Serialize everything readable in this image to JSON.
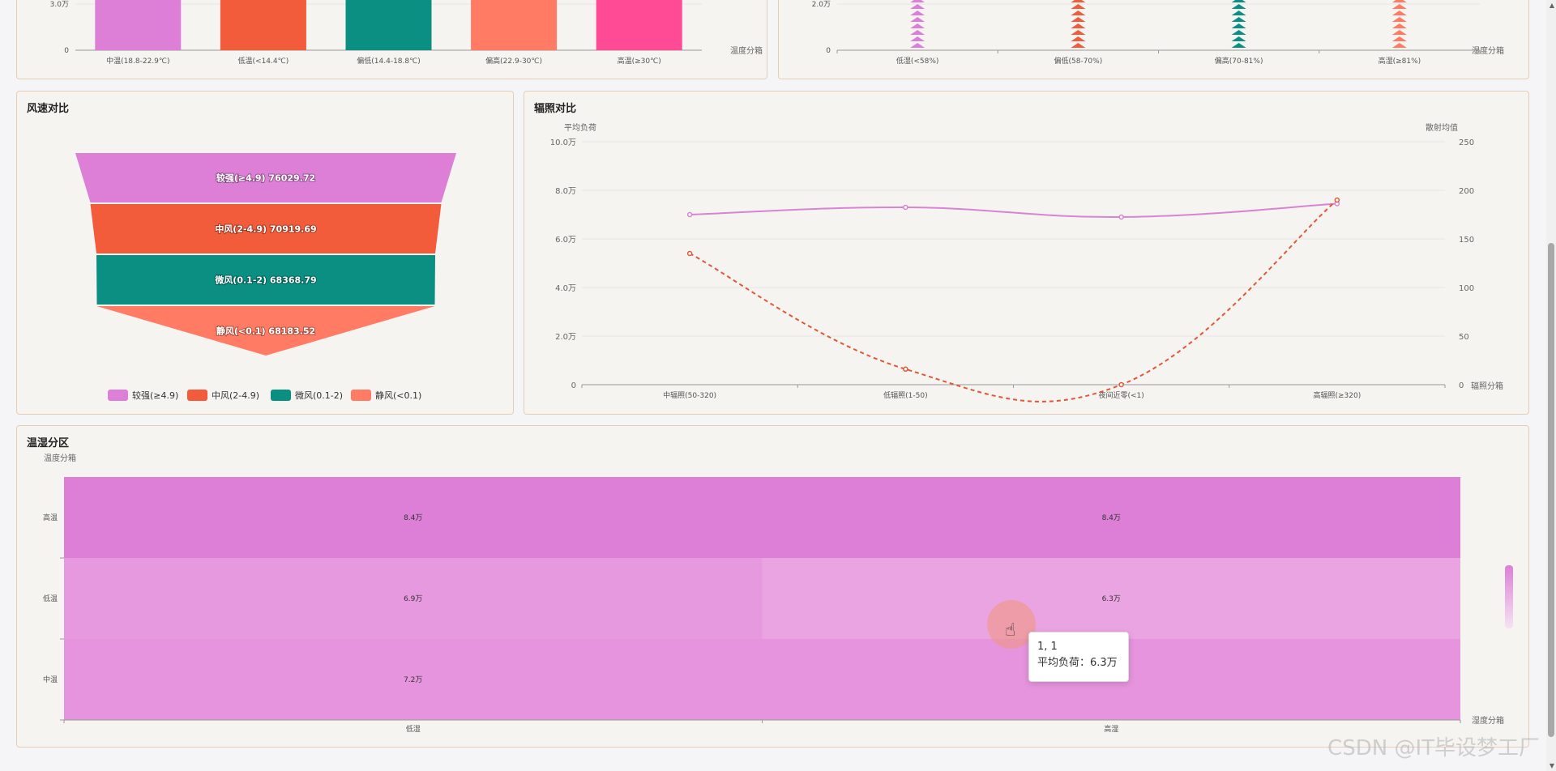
{
  "panels": {
    "top_left": {
      "title": ""
    },
    "top_right": {
      "title": ""
    },
    "wind": {
      "title": "风速对比"
    },
    "radiation": {
      "title": "辐照对比"
    },
    "heatmap": {
      "title": "温湿分区"
    }
  },
  "tooltip": {
    "line1": "1, 1",
    "line2": "平均负荷：6.3万"
  },
  "watermark": "CSDN @IT毕设梦工厂",
  "colors": {
    "pink": "#dd7fd6",
    "orange": "#f25c3b",
    "teal": "#0b8f82",
    "salmon": "#ff7b64",
    "hotpink": "#ff4a95",
    "line_pink": "#d884d3",
    "line_orange": "#e0583a"
  },
  "chart_data": [
    {
      "id": "temp_bar",
      "type": "bar",
      "xlabel": "温度分箱",
      "categories": [
        "中温(18.8-22.9℃)",
        "低温(<14.4℃)",
        "偏低(14.4-18.8℃)",
        "偏高(22.9-30℃)",
        "高温(≥30℃)"
      ],
      "y_ticks": [
        "0",
        "3.0万"
      ]
    },
    {
      "id": "humidity_pictorial",
      "type": "bar",
      "xlabel": "湿度分箱",
      "categories": [
        "低湿(<58%)",
        "偏低(58-70%)",
        "偏高(70-81%)",
        "高湿(≥81%)"
      ],
      "y_ticks": [
        "0",
        "2.0万"
      ]
    },
    {
      "id": "wind_funnel",
      "type": "funnel",
      "title": "风速对比",
      "categories": [
        "较强(≥4.9)",
        "中风(2-4.9)",
        "微风(0.1-2)",
        "静风(<0.1)"
      ],
      "values": [
        76029.72,
        70919.69,
        68368.79,
        68183.52
      ],
      "labels": [
        "较强(≥4.9) 76029.72",
        "中风(2-4.9) 70919.69",
        "微风(0.1-2) 68368.79",
        "静风(<0.1) 68183.52"
      ],
      "legend": [
        "较强(≥4.9)",
        "中风(2-4.9)",
        "微风(0.1-2)",
        "静风(<0.1)"
      ]
    },
    {
      "id": "radiation_line",
      "type": "line",
      "title": "辐照对比",
      "xlabel": "辐照分箱",
      "ylabel_left": "平均负荷",
      "ylabel_right": "散射均值",
      "categories": [
        "中辐照(50-320)",
        "低辐照(1-50)",
        "夜间近零(<1)",
        "高辐照(≥320)"
      ],
      "y_left_ticks": [
        "0",
        "2.0万",
        "4.0万",
        "6.0万",
        "8.0万",
        "10.0万"
      ],
      "y_right_ticks": [
        "0",
        "50",
        "100",
        "150",
        "200",
        "250"
      ],
      "ylim_left": [
        0,
        100000
      ],
      "ylim_right": [
        0,
        250
      ],
      "series": [
        {
          "name": "平均负荷",
          "axis": "left",
          "values": [
            70000,
            73000,
            69000,
            74500
          ]
        },
        {
          "name": "散射均值",
          "axis": "right",
          "values": [
            135,
            16,
            0,
            190
          ]
        }
      ]
    },
    {
      "id": "temp_humidity_heatmap",
      "type": "heatmap",
      "title": "温湿分区",
      "ylabel": "温度分箱",
      "xlabel": "湿度分箱",
      "x_categories": [
        "低湿",
        "高湿"
      ],
      "y_categories": [
        "中温",
        "低温",
        "高温"
      ],
      "values": [
        [
          72000,
          72000
        ],
        [
          69000,
          63000
        ],
        [
          84000,
          84000
        ]
      ],
      "labels": [
        [
          "7.2万",
          ""
        ],
        [
          "6.9万",
          "6.3万"
        ],
        [
          "8.4万",
          "8.4万"
        ]
      ]
    }
  ]
}
